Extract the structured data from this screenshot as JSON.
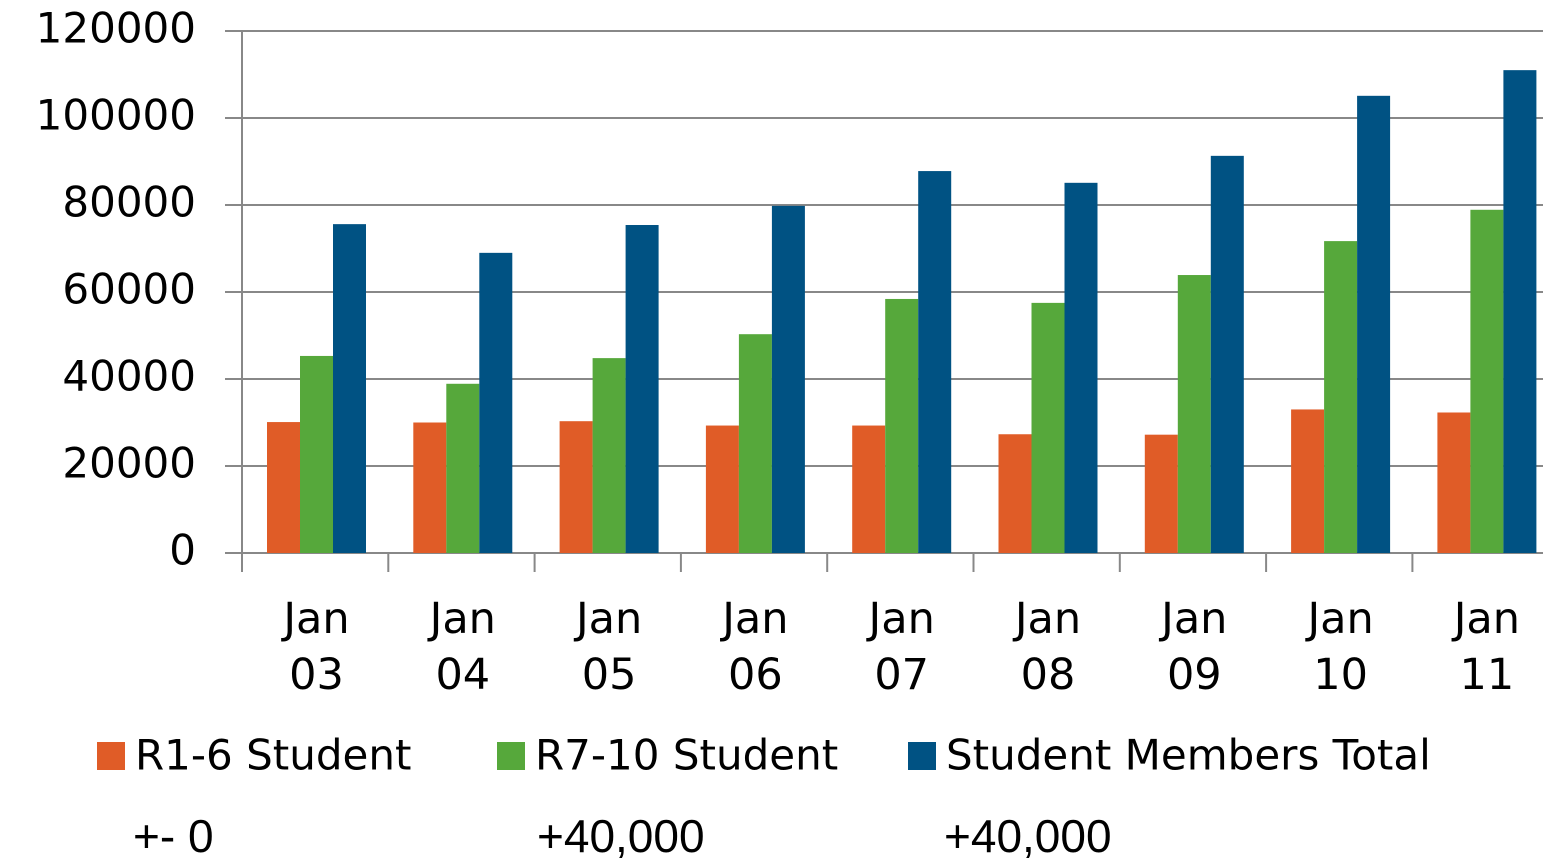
{
  "chart_data": {
    "type": "bar",
    "categories": [
      "Jan 03",
      "Jan 04",
      "Jan 05",
      "Jan 06",
      "Jan 07",
      "Jan 08",
      "Jan 09",
      "Jan 10",
      "Jan 11"
    ],
    "series": [
      {
        "name": "R1-6 Student",
        "color": "#e05c27",
        "values": [
          30100,
          30000,
          30300,
          29300,
          29300,
          27300,
          27200,
          33000,
          32300
        ]
      },
      {
        "name": "R7-10 Student",
        "color": "#56a83b",
        "values": [
          45300,
          38900,
          44800,
          50300,
          58400,
          57500,
          63900,
          71700,
          78900
        ]
      },
      {
        "name": "Student Members Total",
        "color": "#005283",
        "values": [
          75600,
          69000,
          75400,
          79800,
          87800,
          85100,
          91300,
          105100,
          111000
        ]
      }
    ],
    "ylim": [
      0,
      120000
    ],
    "yticks": [
      0,
      20000,
      40000,
      60000,
      80000,
      100000,
      120000
    ],
    "grid": true,
    "annotations": [
      "+- 0",
      "+40,000",
      "+40,000"
    ]
  }
}
